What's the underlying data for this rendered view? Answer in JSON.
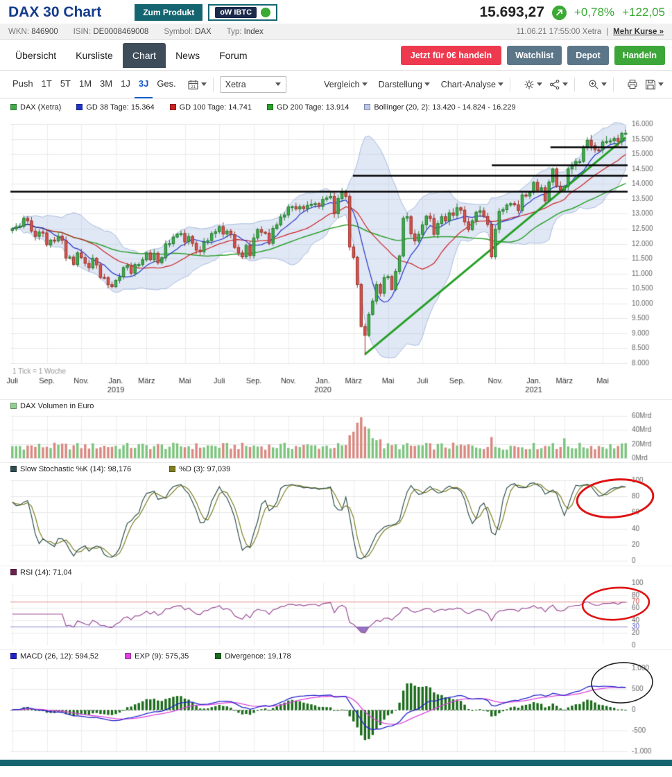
{
  "header": {
    "title": "DAX 30 Chart",
    "product_button": "Zum Produkt",
    "banner_button": "oW IBTC",
    "price": "15.693,27",
    "change_pct": "+0,78%",
    "change_abs": "+122,05"
  },
  "info_bar": {
    "wkn_label": "WKN:",
    "wkn": "846900",
    "isin_label": "ISIN:",
    "isin": "DE0008469008",
    "symbol_label": "Symbol:",
    "symbol": "DAX",
    "typ_label": "Typ:",
    "typ": "Index",
    "timestamp": "11.06.21 17:55:00 Xetra",
    "separator": "|",
    "more_link": "Mehr Kurse »"
  },
  "tabs": {
    "items": [
      "Übersicht",
      "Kursliste",
      "Chart",
      "News",
      "Forum"
    ],
    "active": "Chart"
  },
  "actions": {
    "trade_free": "Jetzt für 0€ handeln",
    "watchlist": "Watchlist",
    "depot": "Depot",
    "handeln": "Handeln"
  },
  "toolbar": {
    "push": "Push",
    "ranges": [
      "1T",
      "5T",
      "1M",
      "3M",
      "1J",
      "3J",
      "Ges."
    ],
    "active_range": "3J",
    "calendar_day": "21",
    "exchange": "Xetra",
    "menus": [
      "Vergleich",
      "Darstellung",
      "Chart-Analyse"
    ]
  },
  "legend": {
    "dax": "DAX (Xetra)",
    "gd38": "GD 38 Tage: 15.364",
    "gd100": "GD 100 Tage: 14.741",
    "gd200": "GD 200 Tage: 13.914",
    "bollinger": "Bollinger (20, 2): 13.420 - 14.824 - 16.229"
  },
  "panels": {
    "volume_legend": "DAX Volumen in Euro",
    "stoch_k": "Slow Stochastic %K (14): 98,176",
    "stoch_d": "%D (3): 97,039",
    "rsi": "RSI (14): 71,04",
    "macd": "MACD (26, 12): 594,52",
    "macd_exp": "EXP (9): 575,35",
    "macd_div": "Divergence: 19,178"
  },
  "colors": {
    "title_blue": "#143c8c",
    "positive_green": "#3aaa35",
    "teal": "#156570",
    "red_button": "#ee3a4f",
    "slate_button": "#5b7689",
    "tab_active_bg": "#3e4d59",
    "range_active_blue": "#1258c8",
    "candle_up": "#3fae49",
    "candle_down": "#d9534f",
    "gd38": "#2233cc",
    "gd100": "#cc2222",
    "gd200": "#2ca02c",
    "bollinger_fill": "rgba(174,193,229,0.38)",
    "bollinger_edge": "#a9bddf",
    "bollinger_swatch": "#b9c8ec",
    "trend": "#23a023",
    "volume_swatch": "#8fce8f",
    "stoch_k": "#2f4f4f",
    "stoch_d": "#7f7f23",
    "rsi": "#9b4d97",
    "rsi_swatch": "#69224f",
    "macd": "#2222cc",
    "macd_exp": "#dd44dd",
    "macd_div": "#1c6b1c",
    "annotation_red": "#e01212",
    "annotation_black": "#222222"
  },
  "chart_data": {
    "type": "candlestick-multi-panel",
    "tick_note": "1 Tick = 1 Woche",
    "x_ticks": [
      {
        "i": 0,
        "label": "Juli"
      },
      {
        "i": 9,
        "label": "Sep."
      },
      {
        "i": 18,
        "label": "Nov."
      },
      {
        "i": 27,
        "label": "Jan.",
        "year": "2019"
      },
      {
        "i": 35,
        "label": "März"
      },
      {
        "i": 45,
        "label": "Mai"
      },
      {
        "i": 54,
        "label": "Juli"
      },
      {
        "i": 63,
        "label": "Sep."
      },
      {
        "i": 72,
        "label": "Nov."
      },
      {
        "i": 81,
        "label": "Jan.",
        "year": "2020"
      },
      {
        "i": 89,
        "label": "März"
      },
      {
        "i": 98,
        "label": "Mai"
      },
      {
        "i": 107,
        "label": "Juli"
      },
      {
        "i": 116,
        "label": "Sep."
      },
      {
        "i": 126,
        "label": "Nov."
      },
      {
        "i": 136,
        "label": "Jan.",
        "year": "2021"
      },
      {
        "i": 144,
        "label": "März"
      },
      {
        "i": 154,
        "label": "Mai"
      }
    ],
    "main": {
      "ylim": [
        8000,
        16000
      ],
      "ytick_step": 500,
      "closes": [
        12500,
        12560,
        12580,
        12850,
        12760,
        12420,
        12240,
        12390,
        12360,
        11960,
        12120,
        12090,
        12250,
        12110,
        11520,
        11550,
        11300,
        11690,
        11530,
        11340,
        11190,
        11510,
        11290,
        10870,
        10860,
        10630,
        10560,
        10770,
        10890,
        11200,
        11280,
        11010,
        11300,
        11300,
        11460,
        11690,
        11460,
        11680,
        11360,
        11530,
        11990,
        12000,
        12220,
        12320,
        12340,
        12060,
        12240,
        12010,
        11780,
        11730,
        12050,
        12100,
        12340,
        12400,
        12570,
        12320,
        12420,
        12300,
        11870,
        11690,
        11560,
        11940,
        11600,
        12190,
        12470,
        12380,
        12350,
        12010,
        12510,
        12630,
        12890,
        12960,
        13230,
        13240,
        13160,
        13240,
        13170,
        13280,
        13320,
        13340,
        13250,
        13480,
        13530,
        13580,
        13000,
        13510,
        13740,
        13580,
        11890,
        11540,
        10630,
        9230,
        8930,
        9630,
        10080,
        10630,
        10340,
        10860,
        10900,
        10470,
        11070,
        11590,
        12850,
        12900,
        12330,
        12090,
        12310,
        12630,
        12920,
        12840,
        12310,
        12670,
        12900,
        12760,
        13030,
        12950,
        13200,
        13120,
        12730,
        12470,
        12760,
        13050,
        13100,
        12910,
        12640,
        11560,
        12480,
        13080,
        13140,
        13290,
        13340,
        13300,
        13110,
        13630,
        13590,
        13720,
        14050,
        13790,
        13870,
        13430,
        14060,
        14500,
        13920,
        13790,
        13920,
        14500,
        14620,
        14750,
        14750,
        15230,
        15460,
        15280,
        15140,
        15135,
        15400,
        15420,
        15440,
        15520,
        15420,
        15690,
        15693
      ],
      "low_overrides": {
        "92": 8260
      },
      "horizontal_lines": [
        {
          "value": 13760,
          "x1": 0,
          "x2": 1
        },
        {
          "value": 14280,
          "x1": 0.555,
          "x2": 1
        },
        {
          "value": 14640,
          "x1": 0.78,
          "x2": 1
        },
        {
          "value": 15240,
          "x1": 0.875,
          "x2": 1
        }
      ],
      "trend_line": {
        "from_index": 92,
        "from_value": 8300,
        "to_index": 160,
        "to_value": 15550
      },
      "indicators": {
        "gd38_window": 8,
        "gd100_window": 20,
        "gd200_window": 43,
        "bollinger_window": 16,
        "bollinger_k": 2
      }
    },
    "volume": {
      "ylim": [
        0,
        60
      ],
      "yticks": [
        "60Mrd",
        "40Mrd",
        "20Mrd",
        "0Mrd"
      ],
      "boost": {
        "88": 12,
        "89": 22,
        "90": 30,
        "91": 42,
        "92": 30,
        "93": 24,
        "94": 16,
        "95": 10,
        "96": 6,
        "125": 9,
        "141": 6,
        "144": 7
      }
    },
    "stochastic": {
      "ylim": [
        0,
        100
      ],
      "k_window": 14,
      "smoothing": 3
    },
    "rsi": {
      "window": 14,
      "upper": 70,
      "lower": 30
    },
    "macd": {
      "fast": 12,
      "slow": 26,
      "signal": 9,
      "ylim": [
        -1000,
        1000
      ]
    }
  }
}
